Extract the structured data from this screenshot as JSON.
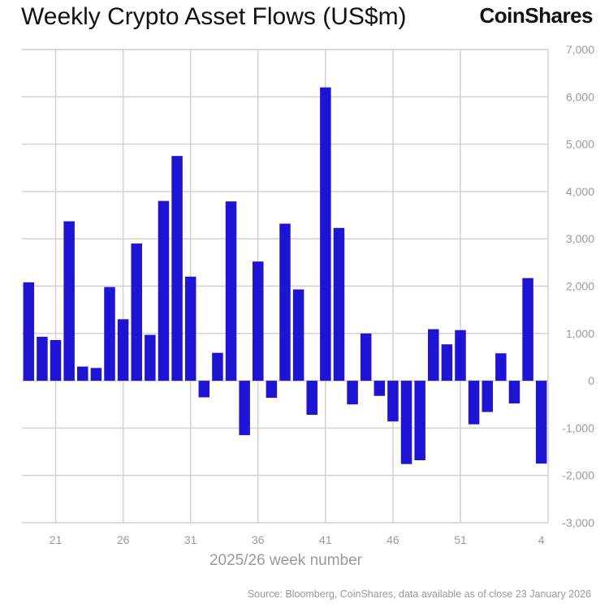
{
  "brand": "CoinShares",
  "source": "Source: Bloomberg, CoinShares, data available as of close 23 January 2026",
  "colors": {
    "bar": "#1f14d4",
    "grid": "#cfcfcf",
    "tick": "#9a9a9a",
    "text": "#111111"
  },
  "chart_data": {
    "type": "bar",
    "title": "Weekly Crypto Asset Flows (US$m)",
    "xlabel": "2025/26 week number",
    "ylabel": "",
    "ylim": [
      -3000,
      7000
    ],
    "yticks": [
      7000,
      6000,
      5000,
      4000,
      3000,
      2000,
      1000,
      0,
      -1000,
      -2000,
      -3000
    ],
    "ytick_labels": [
      "7,000",
      "6,000",
      "5,000",
      "4,000",
      "3,000",
      "2,000",
      "1,000",
      "0",
      "-1,000",
      "-2,000",
      "-3,000"
    ],
    "y_axis_side": "right",
    "grid": true,
    "legend": "none",
    "categories": [
      19,
      20,
      21,
      22,
      23,
      24,
      25,
      26,
      27,
      28,
      29,
      30,
      31,
      32,
      33,
      34,
      35,
      36,
      37,
      38,
      39,
      40,
      41,
      42,
      43,
      44,
      45,
      46,
      47,
      48,
      49,
      50,
      51,
      52,
      53,
      1,
      2,
      3,
      4
    ],
    "xtick_labels": [
      "21",
      "26",
      "31",
      "36",
      "41",
      "46",
      "51",
      "4"
    ],
    "values": [
      2080,
      930,
      860,
      3370,
      300,
      270,
      1980,
      1300,
      2900,
      970,
      3800,
      4750,
      2200,
      -350,
      590,
      3790,
      -1150,
      2520,
      -360,
      3320,
      1930,
      -720,
      6200,
      3230,
      -500,
      1000,
      -320,
      -860,
      -1760,
      -1680,
      1090,
      770,
      1070,
      -920,
      -660,
      580,
      -480,
      2170,
      -1750
    ]
  }
}
